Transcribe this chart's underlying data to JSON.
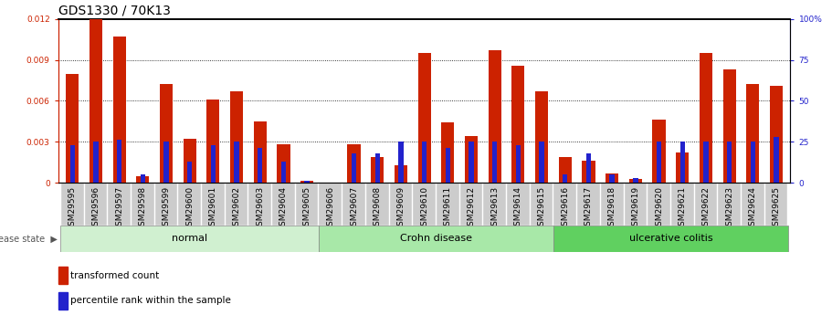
{
  "title": "GDS1330 / 70K13",
  "samples": [
    "GSM29595",
    "GSM29596",
    "GSM29597",
    "GSM29598",
    "GSM29599",
    "GSM29600",
    "GSM29601",
    "GSM29602",
    "GSM29603",
    "GSM29604",
    "GSM29605",
    "GSM29606",
    "GSM29607",
    "GSM29608",
    "GSM29609",
    "GSM29610",
    "GSM29611",
    "GSM29612",
    "GSM29613",
    "GSM29614",
    "GSM29615",
    "GSM29616",
    "GSM29617",
    "GSM29618",
    "GSM29619",
    "GSM29620",
    "GSM29621",
    "GSM29622",
    "GSM29623",
    "GSM29624",
    "GSM29625"
  ],
  "transformed_count": [
    0.008,
    0.012,
    0.0107,
    0.0005,
    0.0072,
    0.0032,
    0.0061,
    0.0067,
    0.0045,
    0.0028,
    0.00012,
    1e-05,
    0.0028,
    0.0019,
    0.0013,
    0.0095,
    0.0044,
    0.0034,
    0.0097,
    0.0086,
    0.0067,
    0.0019,
    0.0016,
    0.00065,
    0.0003,
    0.0046,
    0.0022,
    0.0095,
    0.0083,
    0.0072,
    0.0071
  ],
  "percentile_rank_pct": [
    23,
    25,
    26,
    5,
    25,
    13,
    23,
    25,
    21,
    13,
    1,
    0,
    18,
    18,
    25,
    25,
    21,
    25,
    25,
    23,
    25,
    5,
    18,
    5,
    3,
    25,
    25,
    25,
    25,
    25,
    28
  ],
  "groups": [
    {
      "name": "normal",
      "start": 0,
      "end": 11,
      "color": "#d0f0d0"
    },
    {
      "name": "Crohn disease",
      "start": 11,
      "end": 21,
      "color": "#a8e8a8"
    },
    {
      "name": "ulcerative colitis",
      "start": 21,
      "end": 31,
      "color": "#60d060"
    }
  ],
  "ylim_left": [
    0,
    0.012
  ],
  "ylim_right": [
    0,
    100
  ],
  "yticks_left": [
    0,
    0.003,
    0.006,
    0.009,
    0.012
  ],
  "yticks_right": [
    0,
    25,
    50,
    75,
    100
  ],
  "bar_color_red": "#cc2200",
  "bar_color_blue": "#2222cc",
  "grid_color": "#000000",
  "background_color": "#ffffff",
  "title_fontsize": 10,
  "tick_fontsize": 6.5,
  "label_fontsize": 8,
  "xtick_bg_color": "#cccccc"
}
